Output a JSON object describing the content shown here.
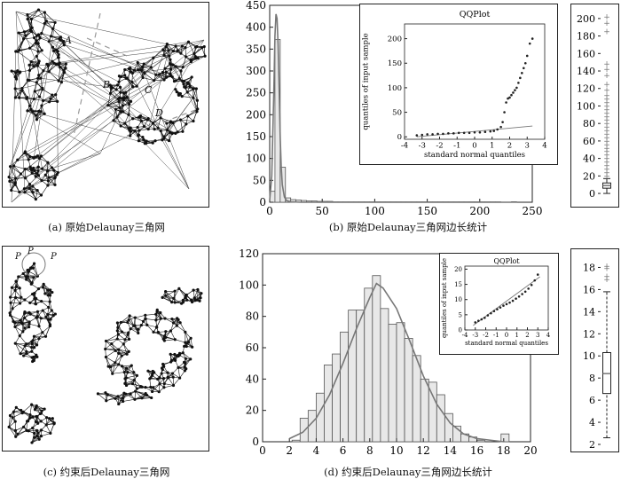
{
  "figure": {
    "captions": {
      "a": "(a) 原始Delaunay三角网",
      "b": "(b) 原始Delaunay三角网边长统计",
      "c": "(c) 约束后Delaunay三角网",
      "d": "(d) 约束后Delaunay三角网边长统计"
    },
    "panel_a_labels": [
      "A",
      "B",
      "C",
      "D"
    ],
    "panel_c_labels": [
      "P",
      "P",
      "P"
    ]
  },
  "chart_data": [
    {
      "id": "b-hist",
      "type": "bar",
      "title": "",
      "xlabel": "",
      "ylabel": "",
      "xlim": [
        0,
        250
      ],
      "ylim": [
        0,
        450
      ],
      "xticks": [
        0,
        50,
        100,
        150,
        200,
        250
      ],
      "yticks": [
        0,
        50,
        100,
        150,
        200,
        250,
        300,
        350,
        400,
        450
      ],
      "bin_width": 5,
      "bins_start": [
        0,
        5,
        10,
        15,
        20,
        25,
        30,
        35,
        40,
        45,
        50,
        55,
        60,
        65,
        70,
        75,
        80,
        85,
        90,
        95,
        100,
        105,
        110,
        115,
        120,
        125,
        130,
        135,
        140,
        145,
        150,
        155,
        160,
        165,
        170,
        175,
        180,
        185,
        190,
        195,
        200,
        205,
        210,
        215,
        220,
        225,
        230
      ],
      "values": [
        25,
        372,
        80,
        10,
        6,
        5,
        4,
        3,
        3,
        2,
        2,
        2,
        1,
        1,
        1,
        1,
        1,
        1,
        1,
        1,
        1,
        1,
        1,
        1,
        1,
        1,
        1,
        1,
        1,
        1,
        1,
        1,
        1,
        1,
        1,
        1,
        1,
        1,
        1,
        1,
        1,
        1,
        1,
        1,
        0,
        0,
        1
      ],
      "curve": {
        "name": "normal fit",
        "x": [
          0,
          2,
          4,
          5,
          6,
          7,
          8,
          9,
          10,
          11,
          12,
          14,
          16,
          20,
          30,
          60,
          230
        ],
        "y": [
          5,
          60,
          260,
          380,
          430,
          420,
          360,
          260,
          150,
          80,
          40,
          12,
          4,
          1,
          0,
          0,
          0
        ]
      }
    },
    {
      "id": "b-qq",
      "type": "scatter",
      "title": "QQPlot",
      "xlabel": "standard normal quantiles",
      "ylabel": "quantiles of input sample",
      "xlim": [
        -4,
        4
      ],
      "ylim": [
        -5,
        230
      ],
      "xticks": [
        -4,
        -3,
        -2,
        -1,
        0,
        1,
        2,
        3,
        4
      ],
      "yticks": [
        0,
        50,
        100,
        150,
        200
      ],
      "points_x": [
        -3.3,
        -3.0,
        -2.7,
        -2.4,
        -2.1,
        -1.8,
        -1.5,
        -1.2,
        -0.9,
        -0.6,
        -0.3,
        0.0,
        0.3,
        0.6,
        0.9,
        1.1,
        1.3,
        1.5,
        1.6,
        1.7,
        1.8,
        1.9,
        2.0,
        2.1,
        2.2,
        2.3,
        2.4,
        2.5,
        2.6,
        2.7,
        2.8,
        2.9,
        3.0,
        3.15,
        3.3
      ],
      "points_y": [
        3,
        4,
        5,
        5,
        6,
        6,
        7,
        7,
        8,
        8,
        8,
        9,
        9,
        10,
        11,
        12,
        15,
        20,
        30,
        50,
        70,
        78,
        80,
        85,
        90,
        95,
        100,
        110,
        120,
        130,
        140,
        150,
        165,
        190,
        200
      ],
      "reference_line": {
        "x": [
          -3.3,
          3.3
        ],
        "y": [
          0,
          22
        ]
      }
    },
    {
      "id": "b-box",
      "type": "box",
      "ylim": [
        -5,
        210
      ],
      "yticks": [
        0,
        20,
        40,
        60,
        80,
        100,
        120,
        140,
        160,
        180,
        200
      ],
      "q1": 6,
      "median": 9,
      "q3": 12,
      "whisker_low": 0,
      "whisker_high": 17,
      "outliers": [
        20,
        24,
        28,
        32,
        36,
        40,
        44,
        48,
        52,
        56,
        60,
        64,
        68,
        72,
        76,
        80,
        84,
        88,
        92,
        96,
        100,
        104,
        108,
        112,
        118,
        125,
        135,
        142,
        148,
        185,
        195,
        202
      ]
    },
    {
      "id": "d-hist",
      "type": "bar",
      "title": "",
      "xlabel": "",
      "ylabel": "",
      "xlim": [
        0,
        20
      ],
      "ylim": [
        0,
        120
      ],
      "xticks": [
        0,
        2,
        4,
        6,
        8,
        10,
        12,
        14,
        16,
        18,
        20
      ],
      "yticks": [
        0,
        20,
        40,
        60,
        80,
        100,
        120
      ],
      "bin_width": 0.6,
      "bins_start": [
        2.2,
        2.8,
        3.4,
        4.0,
        4.6,
        5.2,
        5.8,
        6.4,
        7.0,
        7.6,
        8.2,
        8.8,
        9.4,
        10.0,
        10.6,
        11.2,
        11.8,
        12.4,
        13.0,
        13.6,
        14.2,
        14.8,
        15.4,
        16.0,
        16.6,
        17.2,
        17.8
      ],
      "values": [
        1,
        15,
        20,
        31,
        49,
        56,
        70,
        84,
        84,
        98,
        106,
        85,
        75,
        76,
        66,
        55,
        40,
        38,
        30,
        18,
        10,
        5,
        3,
        1,
        0,
        0,
        5
      ],
      "curve": {
        "name": "normal fit",
        "x": [
          2,
          3,
          4,
          5,
          6,
          7,
          8,
          8.5,
          9,
          10,
          11,
          12,
          13,
          14,
          15,
          16,
          17,
          18
        ],
        "y": [
          2,
          6,
          15,
          30,
          50,
          72,
          92,
          101,
          98,
          85,
          64,
          42,
          24,
          12,
          5,
          2,
          1,
          0
        ]
      }
    },
    {
      "id": "d-qq",
      "type": "scatter",
      "title": "QQPlot",
      "xlabel": "standard normal quantiles",
      "ylabel": "quantiles of input sample",
      "xlim": [
        -4,
        4
      ],
      "ylim": [
        0,
        21
      ],
      "xticks": [
        -4,
        -3,
        -2,
        -1,
        0,
        1,
        2,
        3,
        4
      ],
      "yticks": [
        0,
        5,
        10,
        15,
        20
      ],
      "points_x": [
        -3.0,
        -2.7,
        -2.4,
        -2.1,
        -1.8,
        -1.5,
        -1.2,
        -0.9,
        -0.6,
        -0.3,
        0.0,
        0.3,
        0.6,
        0.9,
        1.2,
        1.5,
        1.8,
        2.1,
        2.4,
        2.7,
        3.0
      ],
      "points_y": [
        2.5,
        3.0,
        3.5,
        4.0,
        4.8,
        5.5,
        6.2,
        6.8,
        7.4,
        8.0,
        8.5,
        9.0,
        9.6,
        10.3,
        11.0,
        11.8,
        12.6,
        13.6,
        14.8,
        16.3,
        18.2
      ],
      "reference_line": {
        "x": [
          -3.2,
          3.2
        ],
        "y": [
          1.5,
          17.5
        ]
      }
    },
    {
      "id": "d-box",
      "type": "box",
      "ylim": [
        2,
        19
      ],
      "yticks": [
        2,
        4,
        6,
        8,
        10,
        12,
        14,
        16,
        18
      ],
      "q1": 6.6,
      "median": 8.4,
      "q3": 10.3,
      "whisker_low": 2.6,
      "whisker_high": 15.8,
      "outliers": [
        16.9,
        17.2,
        17.9,
        18.1
      ]
    }
  ]
}
